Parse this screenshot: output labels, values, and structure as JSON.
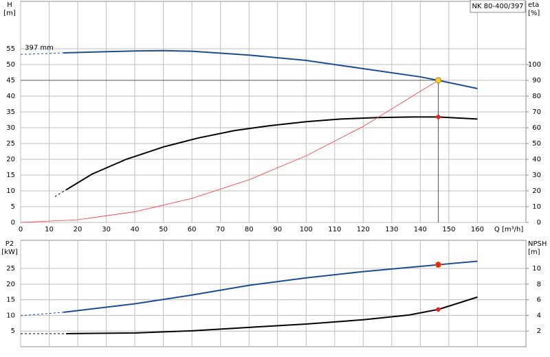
{
  "chart_data": [
    {
      "type": "line",
      "title": "NK 80-400/397",
      "ylabel": [
        "H",
        "[m]"
      ],
      "y2label": [
        "eta",
        "[%]"
      ],
      "xlabel": "Q [m³/h]",
      "xlim": [
        0,
        177
      ],
      "ylim": [
        0,
        70
      ],
      "y2lim": [
        0,
        140
      ],
      "grid": true,
      "show_xtick_labels": true,
      "xticks": [
        0,
        10,
        20,
        30,
        40,
        50,
        60,
        70,
        80,
        90,
        100,
        110,
        120,
        130,
        140,
        150,
        160
      ],
      "yticks": [
        0,
        5,
        10,
        15,
        20,
        25,
        30,
        35,
        40,
        45,
        50,
        55
      ],
      "y2ticks": [
        0,
        10,
        20,
        30,
        40,
        50,
        60,
        70,
        80,
        90,
        100
      ],
      "annotation": {
        "text": "397 mm",
        "x": 1,
        "y": 53.2
      },
      "series": [
        {
          "color": "#1a4d8f",
          "style": "dashed",
          "x": [
            0,
            15
          ],
          "values": [
            53.2,
            53.7
          ]
        },
        {
          "color": "#1a4d8f",
          "style": "solid",
          "x": [
            15,
            40,
            50,
            60,
            80,
            100,
            120,
            140,
            146.3,
            160
          ],
          "values": [
            53.7,
            54.3,
            54.4,
            54.2,
            53,
            51.3,
            48.7,
            46.1,
            45,
            42.4
          ]
        },
        {
          "color": "#000000",
          "style": "dashed",
          "axis": "y2",
          "x": [
            12,
            16
          ],
          "values": [
            16.4,
            20.7
          ]
        },
        {
          "color": "#000000",
          "style": "solid",
          "axis": "y2",
          "x": [
            16,
            25,
            37,
            50,
            62,
            75,
            87,
            100,
            112,
            125,
            137,
            146.3,
            160
          ],
          "values": [
            20.7,
            30.6,
            40,
            47.8,
            53.4,
            58.2,
            61.2,
            63.8,
            65.5,
            66.4,
            66.8,
            66.8,
            65.5
          ]
        },
        {
          "color": "#ff3030",
          "style": "thin",
          "x": [
            0,
            20,
            40,
            60,
            80,
            100,
            120,
            146.3
          ],
          "values": [
            0,
            0.84,
            3.38,
            7.6,
            13.5,
            21.1,
            30.4,
            45
          ]
        }
      ],
      "operating_point": {
        "x": 146.3,
        "y": 45
      },
      "points": [
        {
          "x": 146.3,
          "y": 45,
          "color": "#ffd21f"
        },
        {
          "x": 146.3,
          "y": 66.8,
          "axis": "y2",
          "color": "#ff1a1a"
        }
      ]
    },
    {
      "type": "line",
      "ylabel": [
        "P2",
        "[kW]"
      ],
      "y2label": [
        "NPSH",
        "[m]"
      ],
      "xlim": [
        0,
        177
      ],
      "ylim": [
        0,
        34
      ],
      "y2lim": [
        0,
        13.6
      ],
      "grid": true,
      "show_xtick_labels": false,
      "xticks": [
        0,
        10,
        20,
        30,
        40,
        50,
        60,
        70,
        80,
        90,
        100,
        110,
        120,
        130,
        140,
        150,
        160
      ],
      "yticks": [
        5,
        10,
        15,
        20,
        25
      ],
      "y2ticks": [
        2,
        4,
        6,
        8,
        10
      ],
      "series": [
        {
          "color": "#1a4d8f",
          "style": "dashed",
          "x": [
            0,
            15
          ],
          "values": [
            9.9,
            11
          ]
        },
        {
          "color": "#1a4d8f",
          "style": "solid",
          "x": [
            15,
            40,
            60,
            80,
            100,
            120,
            146.3,
            160
          ],
          "values": [
            11,
            13.7,
            16.5,
            19.6,
            22,
            24,
            26.2,
            27.3
          ]
        },
        {
          "color": "#000000",
          "style": "dashed",
          "axis": "y2",
          "x": [
            0,
            16
          ],
          "values": [
            1.67,
            1.67
          ]
        },
        {
          "color": "#000000",
          "style": "solid",
          "axis": "y2",
          "x": [
            16,
            40,
            60,
            80,
            100,
            120,
            136,
            146.3,
            160
          ],
          "values": [
            1.67,
            1.76,
            2.03,
            2.47,
            2.9,
            3.44,
            4.05,
            4.76,
            6.34
          ]
        }
      ],
      "points": [
        {
          "x": 146.3,
          "y": 26.2,
          "color": "#ff1a1a"
        },
        {
          "x": 146.3,
          "y": 4.76,
          "axis": "y2",
          "color": "#ff1a1a"
        }
      ]
    }
  ]
}
